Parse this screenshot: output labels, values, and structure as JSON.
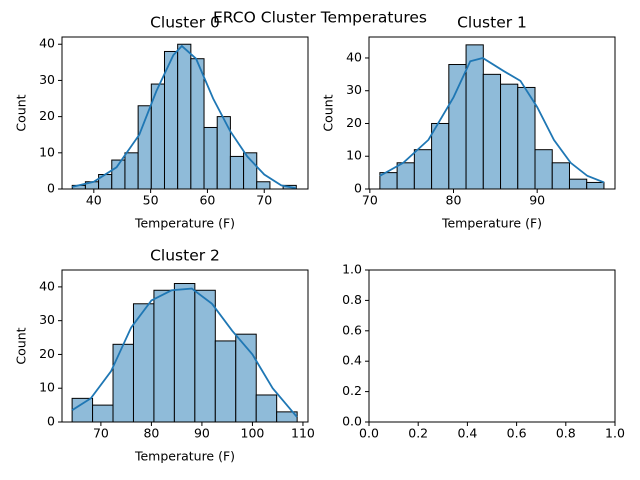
{
  "title": "ERCO Cluster Temperatures",
  "chart_data": [
    {
      "type": "histogram",
      "title": "Cluster 0",
      "xlabel": "Temperature (F)",
      "ylabel": "Count",
      "bins": [
        36.2,
        38.52,
        40.84,
        43.16,
        45.48,
        47.8,
        50.12,
        52.44,
        54.76,
        57.08,
        59.4,
        61.72,
        64.04,
        66.36,
        68.68,
        71.0,
        73.32,
        75.64
      ],
      "values": [
        1,
        2,
        4,
        8,
        10,
        23,
        29,
        38,
        40,
        36,
        17,
        20,
        9,
        10,
        2,
        0,
        1
      ],
      "kde": {
        "x": [
          36.2,
          40,
          44,
          48,
          51,
          54,
          55.5,
          58,
          61,
          64,
          67,
          70,
          73,
          75.6
        ],
        "values": [
          0.6,
          2,
          6,
          15,
          27,
          37,
          39.5,
          36,
          25,
          16,
          9,
          4,
          1,
          0.2
        ]
      },
      "color": "#8fbbd9",
      "line_color": "#1f77b4",
      "xlim": [
        34.4,
        77.7
      ],
      "ylim": [
        0,
        42
      ],
      "xticks": [
        40,
        50,
        60,
        70
      ],
      "yticks": [
        0,
        10,
        20,
        30,
        40
      ]
    },
    {
      "type": "histogram",
      "title": "Cluster 1",
      "xlabel": "Temperature (F)",
      "ylabel": "Count",
      "bins": [
        71.2,
        73.26,
        75.32,
        77.38,
        79.44,
        81.5,
        83.56,
        85.62,
        87.68,
        89.74,
        91.8,
        93.86,
        95.92,
        97.98
      ],
      "values": [
        5,
        8,
        12,
        20,
        38,
        44,
        35,
        32,
        31,
        12,
        8,
        3,
        2
      ],
      "kde": {
        "x": [
          71.2,
          74,
          77,
          80,
          82,
          83.5,
          86,
          88,
          90,
          92,
          94,
          96,
          98
        ],
        "values": [
          4,
          8,
          15,
          28,
          39,
          40,
          36,
          33,
          25,
          15,
          8,
          4,
          2
        ]
      },
      "color": "#8fbbd9",
      "line_color": "#1f77b4",
      "xlim": [
        69.9,
        99.3
      ],
      "ylim": [
        0,
        46.4
      ],
      "xticks": [
        70,
        80,
        90
      ],
      "yticks": [
        0,
        10,
        20,
        30,
        40
      ]
    },
    {
      "type": "histogram",
      "title": "Cluster 2",
      "xlabel": "Temperature (F)",
      "ylabel": "Count",
      "bins": [
        64.3,
        68.35,
        72.4,
        76.45,
        80.5,
        84.55,
        88.6,
        92.65,
        96.7,
        100.75,
        104.8,
        108.85
      ],
      "values": [
        7,
        5,
        23,
        35,
        39,
        41,
        39,
        24,
        26,
        8,
        3
      ],
      "kde": {
        "x": [
          64.3,
          68,
          72,
          76,
          80,
          84,
          88,
          92,
          96,
          100,
          104,
          108.8
        ],
        "values": [
          3.5,
          7,
          15,
          28,
          36,
          39,
          39.5,
          35,
          27,
          20,
          10,
          1.5
        ]
      },
      "color": "#8fbbd9",
      "line_color": "#1f77b4",
      "xlim": [
        62.3,
        111
      ],
      "ylim": [
        0,
        45
      ],
      "xticks": [
        70,
        80,
        90,
        100,
        110
      ],
      "yticks": [
        0,
        10,
        20,
        30,
        40
      ]
    },
    {
      "type": "empty",
      "xlim": [
        0,
        1
      ],
      "ylim": [
        0,
        1
      ],
      "xticks": [
        {
          "value": 0,
          "label": "0.0"
        },
        {
          "value": 0.2,
          "label": "0.2"
        },
        {
          "value": 0.4,
          "label": "0.4"
        },
        {
          "value": 0.6,
          "label": "0.6"
        },
        {
          "value": 0.8,
          "label": "0.8"
        },
        {
          "value": 1,
          "label": "1.0"
        }
      ],
      "yticks": [
        {
          "value": 0,
          "label": "0.0"
        },
        {
          "value": 0.2,
          "label": "0.2"
        },
        {
          "value": 0.4,
          "label": "0.4"
        },
        {
          "value": 0.6,
          "label": "0.6"
        },
        {
          "value": 0.8,
          "label": "0.8"
        },
        {
          "value": 1,
          "label": "1.0"
        }
      ]
    }
  ]
}
